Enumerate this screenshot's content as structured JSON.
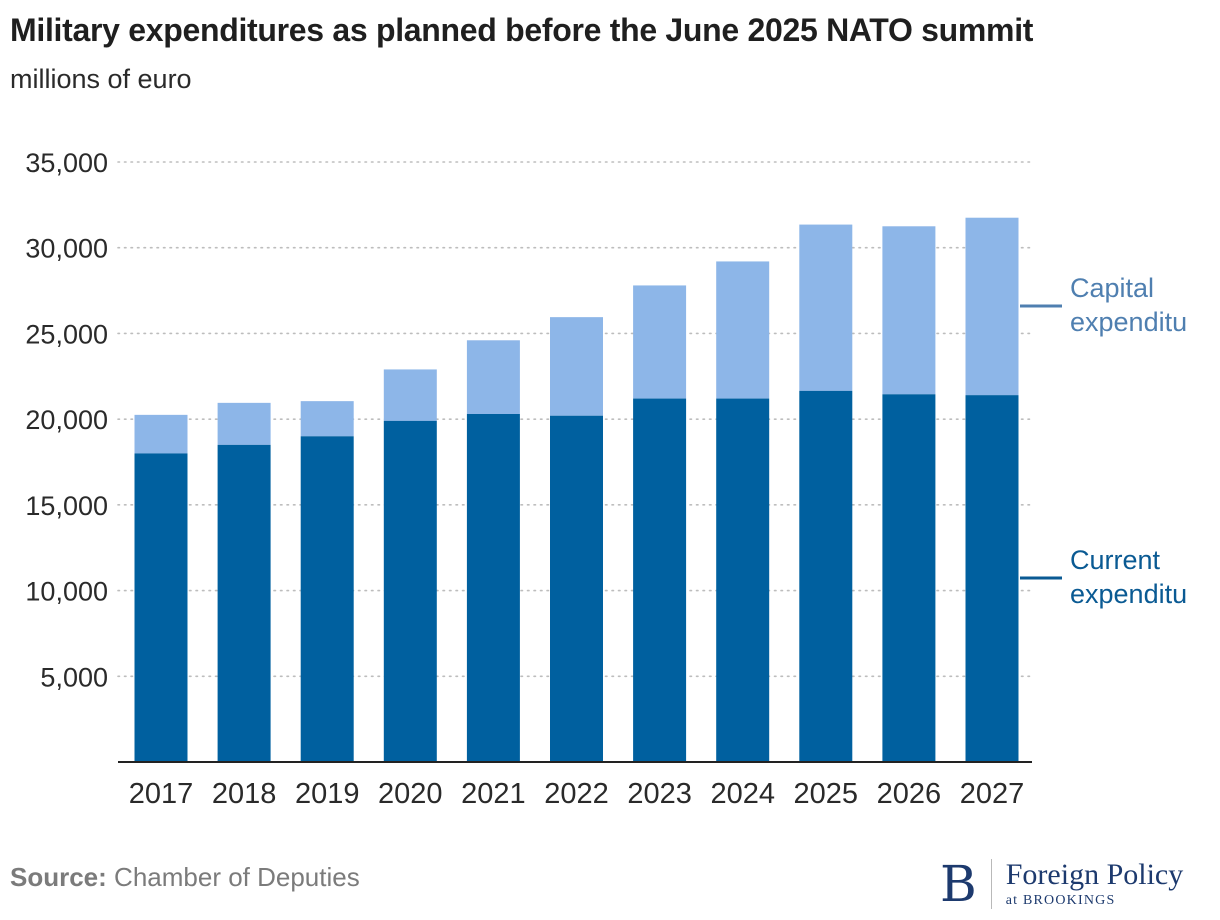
{
  "header": {
    "title": "Military expenditures as planned before the June 2025 NATO summit",
    "subtitle": "millions of euro"
  },
  "footer": {
    "source_label": "Source:",
    "source_text": "Chamber of Deputies"
  },
  "brand": {
    "letter": "B",
    "name": "Foreign Policy",
    "tagline": "at BROOKINGS"
  },
  "colors": {
    "current": "#00609f",
    "capital": "#8db6e8",
    "label_current": "#0a5a93",
    "label_capital": "#4f7fb0",
    "grid": "#bdbdbd"
  },
  "chart_data": {
    "type": "bar",
    "stacked": true,
    "title": "Military expenditures as planned before the June 2025 NATO summit",
    "subtitle": "millions of euro",
    "xlabel": "",
    "ylabel": "",
    "ylim": [
      0,
      35000
    ],
    "yticks": [
      5000,
      10000,
      15000,
      20000,
      25000,
      30000,
      35000
    ],
    "ytick_labels": [
      "5,000",
      "10,000",
      "15,000",
      "20,000",
      "25,000",
      "30,000",
      "35,000"
    ],
    "grid": true,
    "categories": [
      "2017",
      "2018",
      "2019",
      "2020",
      "2021",
      "2022",
      "2023",
      "2024",
      "2025",
      "2026",
      "2027"
    ],
    "series": [
      {
        "name": "Current expenditure",
        "label_lines": [
          "Current",
          "expenditu"
        ],
        "values": [
          18000,
          18500,
          19000,
          19900,
          20300,
          20200,
          21200,
          21200,
          21650,
          21450,
          21400
        ]
      },
      {
        "name": "Capital expenditure",
        "label_lines": [
          "Capital",
          "expenditu"
        ],
        "values": [
          2250,
          2450,
          2050,
          3000,
          4300,
          5750,
          6600,
          8000,
          9700,
          9800,
          10350
        ]
      }
    ]
  }
}
